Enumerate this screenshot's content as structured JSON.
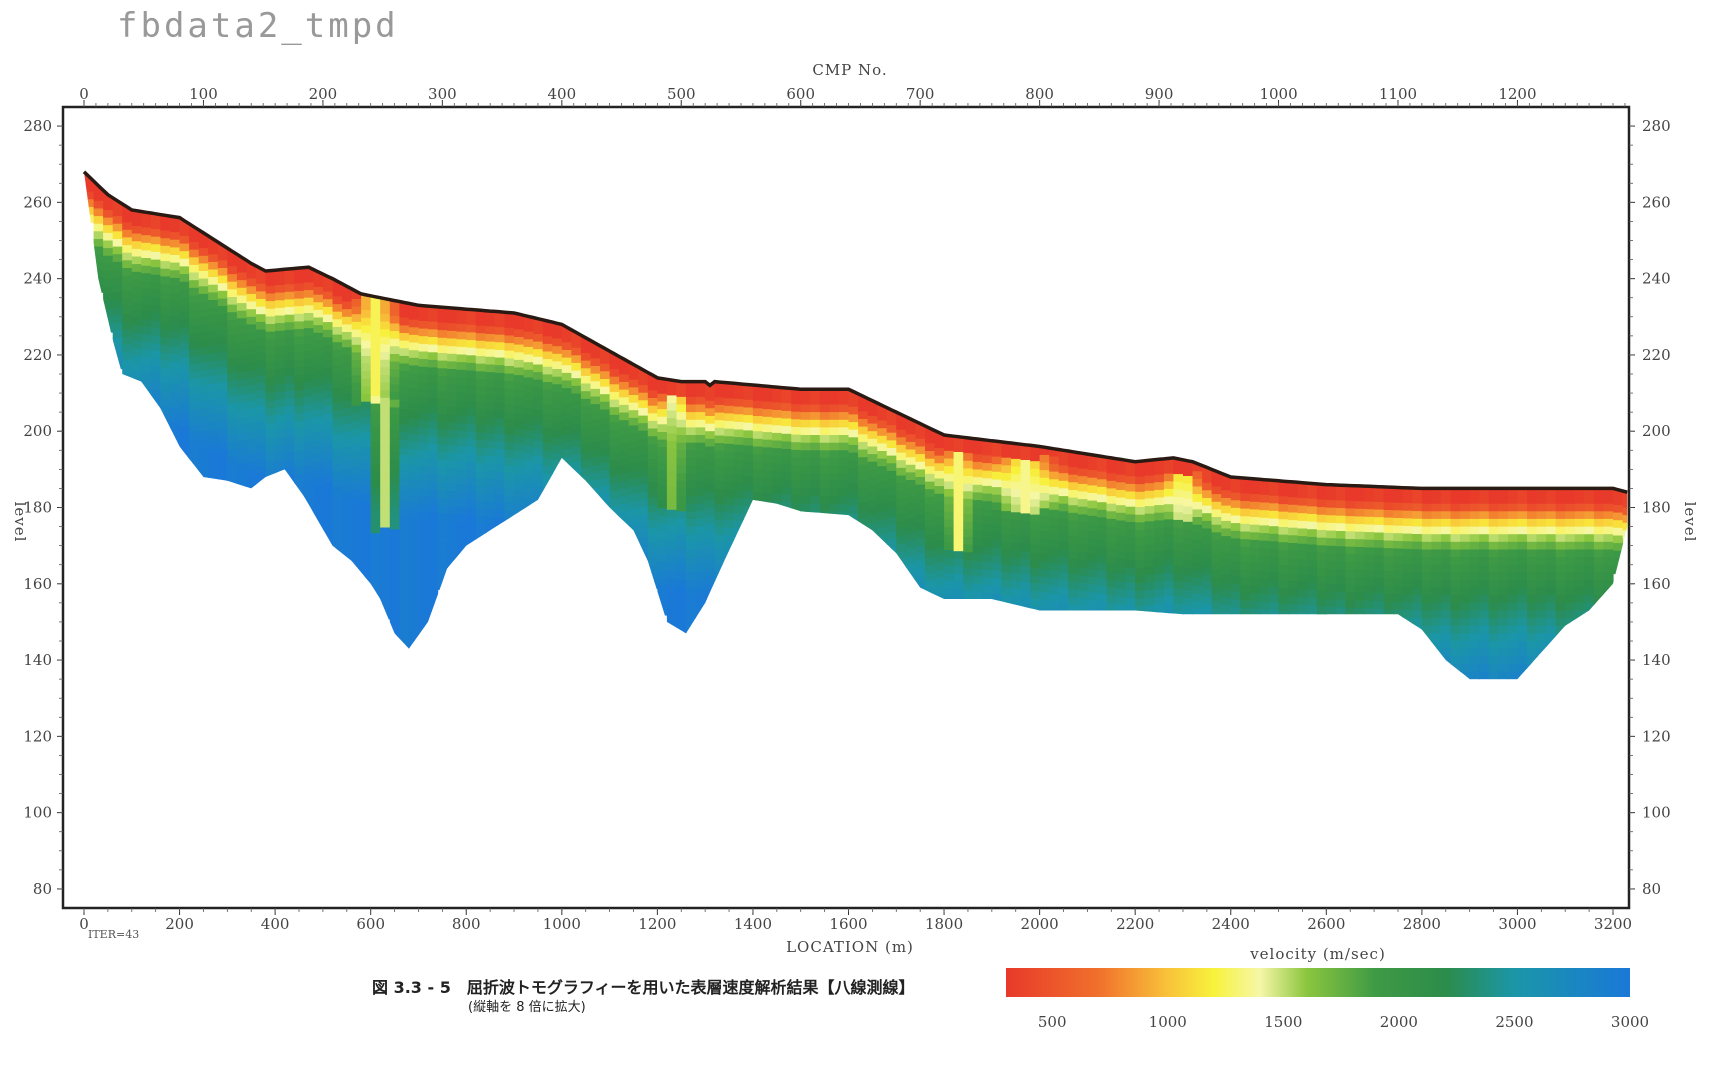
{
  "header": {
    "file_label": "fbdata2_tmpd"
  },
  "footer": {
    "iter_label": "ITER=43",
    "caption": "図 3.3 - 5　屈折波トモグラフィーを用いた表層速度解析結果【八線測線】",
    "caption_sub": "(縦軸を 8 倍に拡大)"
  },
  "chart_data": {
    "type": "heatmap",
    "top_axis": {
      "label": "CMP No.",
      "ticks": [
        "0",
        "100",
        "200",
        "300",
        "400",
        "500",
        "600",
        "700",
        "800",
        "900",
        "1000",
        "1100",
        "1200"
      ]
    },
    "xlabel": "LOCATION (m)",
    "x_ticks": [
      "0",
      "200",
      "400",
      "600",
      "800",
      "1000",
      "1200",
      "1400",
      "1600",
      "1800",
      "2000",
      "2200",
      "2400",
      "2600",
      "2800",
      "3000",
      "3200"
    ],
    "xlim": [
      0,
      3300
    ],
    "ylabel": "level",
    "y_ticks": [
      "80",
      "100",
      "120",
      "140",
      "160",
      "180",
      "200",
      "220",
      "240",
      "260",
      "280"
    ],
    "ylim": [
      75,
      285
    ],
    "colorbar": {
      "label": "velocity (m/sec)",
      "ticks": [
        "500",
        "1000",
        "1500",
        "2000",
        "2500",
        "3000"
      ],
      "range": [
        300,
        3000
      ],
      "colors": [
        {
          "v": 300,
          "c": "#e8392a"
        },
        {
          "v": 700,
          "c": "#f0702c"
        },
        {
          "v": 1000,
          "c": "#f9c23a"
        },
        {
          "v": 1200,
          "c": "#f7f23c"
        },
        {
          "v": 1400,
          "c": "#f6f7a8"
        },
        {
          "v": 1600,
          "c": "#8cc63f"
        },
        {
          "v": 1900,
          "c": "#3e9a45"
        },
        {
          "v": 2200,
          "c": "#2c8c4a"
        },
        {
          "v": 2500,
          "c": "#1b96a8"
        },
        {
          "v": 3000,
          "c": "#1a78d8"
        }
      ]
    },
    "surface": {
      "x": [
        0,
        50,
        100,
        200,
        350,
        380,
        470,
        520,
        580,
        700,
        900,
        1000,
        1200,
        1250,
        1300,
        1305,
        1315,
        1320,
        1500,
        1600,
        1800,
        2000,
        2200,
        2280,
        2320,
        2400,
        2600,
        2800,
        3000,
        3100,
        3200,
        3230
      ],
      "y": [
        268,
        262,
        258,
        256,
        244,
        242,
        243,
        240,
        236,
        233,
        231,
        228,
        214,
        213,
        213,
        211,
        213,
        213,
        211,
        211,
        199,
        196,
        192,
        193,
        192,
        188,
        186,
        185,
        185,
        185,
        185,
        184
      ]
    },
    "bottom": {
      "x": [
        0,
        30,
        60,
        80,
        120,
        160,
        200,
        250,
        300,
        350,
        380,
        420,
        460,
        520,
        560,
        600,
        620,
        650,
        680,
        720,
        760,
        800,
        900,
        950,
        1000,
        1050,
        1100,
        1150,
        1180,
        1220,
        1260,
        1300,
        1340,
        1400,
        1450,
        1500,
        1600,
        1650,
        1700,
        1750,
        1800,
        1900,
        2000,
        2100,
        2200,
        2300,
        2400,
        2500,
        2600,
        2700,
        2750,
        2800,
        2850,
        2900,
        2950,
        3000,
        3050,
        3100,
        3150,
        3200,
        3230
      ],
      "y": [
        268,
        240,
        224,
        215,
        213,
        206,
        196,
        188,
        187,
        185,
        188,
        190,
        183,
        170,
        166,
        160,
        156,
        147,
        143,
        150,
        164,
        170,
        178,
        182,
        193,
        187,
        180,
        174,
        166,
        150,
        147,
        155,
        166,
        182,
        181,
        179,
        178,
        174,
        168,
        159,
        156,
        156,
        153,
        153,
        153,
        152,
        152,
        152,
        152,
        152,
        152,
        148,
        140,
        135,
        135,
        135,
        142,
        149,
        153,
        160,
        175
      ]
    },
    "anomalies": [
      {
        "x": 600,
        "top": 236,
        "depth": 28,
        "w": 55,
        "v": 1250
      },
      {
        "x": 620,
        "top": 210,
        "depth": 35,
        "w": 35,
        "v": 1500
      },
      {
        "x": 1225,
        "top": 210,
        "depth": 30,
        "w": 30,
        "v": 1550
      },
      {
        "x": 1820,
        "top": 196,
        "depth": 26,
        "w": 30,
        "v": 1300
      },
      {
        "x": 1960,
        "top": 194,
        "depth": 14,
        "w": 70,
        "v": 1350
      },
      {
        "x": 2290,
        "top": 190,
        "depth": 12,
        "w": 40,
        "v": 1400
      }
    ]
  }
}
